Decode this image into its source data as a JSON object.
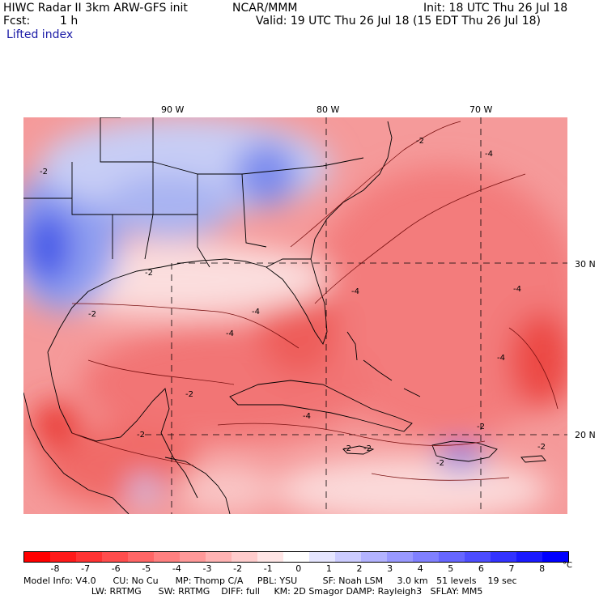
{
  "header": {
    "title": "HIWC Radar II 3km ARW-GFS init",
    "org": "NCAR/MMM",
    "init": "Init: 18 UTC Thu 26 Jul 18",
    "fcst_label": "Fcst:",
    "fcst_value": "1 h",
    "valid": "Valid: 19 UTC Thu 26 Jul 18 (15 EDT Thu 26 Jul 18)",
    "field": "Lifted index"
  },
  "map": {
    "lon_labels": [
      "90 W",
      "80 W",
      "70 W"
    ],
    "lat_labels": [
      "30 N",
      "20 N"
    ],
    "contour_labels": [
      "-2",
      "-4",
      "-2",
      "-4",
      "-2",
      "-4",
      "-4",
      "-2",
      "-2",
      "-4",
      "-2",
      "-4",
      "-2",
      "-2",
      "-2",
      "-4",
      "-2",
      "-2"
    ],
    "colors": {
      "strong_negative": "#e8231f",
      "negative": "#f2777a",
      "neutral": "#fdeaea",
      "positive": "#b3bdf0",
      "strong_positive": "#3a4be6",
      "boundary": "#000000"
    }
  },
  "colorbar": {
    "labels": [
      "-8",
      "-7",
      "-6",
      "-5",
      "-4",
      "-3",
      "-2",
      "-1",
      "0",
      "1",
      "2",
      "3",
      "4",
      "5",
      "6",
      "7",
      "8"
    ],
    "unit": "°C",
    "colors": [
      "#ff0000",
      "#ff1a1a",
      "#ff3333",
      "#ff4d4d",
      "#ff6666",
      "#ff8080",
      "#ff9999",
      "#ffb3b3",
      "#ffcccc",
      "#ffe6e6",
      "#ffffff",
      "#e6e6ff",
      "#ccccff",
      "#b3b3ff",
      "#9999ff",
      "#8080ff",
      "#6666ff",
      "#4d4dff",
      "#3333ff",
      "#1a1aff",
      "#0000ff"
    ]
  },
  "footer": {
    "line1": "Model Info: V4.0      CU: No Cu      MP: Thomp C/A     PBL: YSU         SF: Noah LSM     3.0 km   51 levels    19 sec",
    "line2": "                        LW: RRTMG      SW: RRTMG    DIFF: full     KM: 2D Smagor DAMP: Rayleigh3   SFLAY: MM5"
  }
}
